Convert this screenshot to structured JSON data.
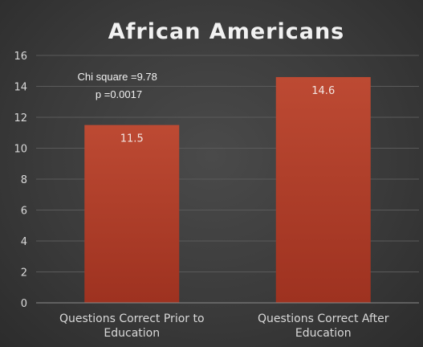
{
  "chart_data": {
    "type": "bar",
    "title": "African Americans",
    "categories": [
      [
        "Questions Correct Prior to",
        "Education"
      ],
      [
        "Questions Correct After",
        "Education"
      ]
    ],
    "values": [
      11.5,
      14.6
    ],
    "data_labels": [
      "11.5",
      "14.6"
    ],
    "ylim": [
      0,
      16
    ],
    "yticks": [
      0,
      2,
      4,
      6,
      8,
      10,
      12,
      14,
      16
    ],
    "grid": true,
    "bar_color": "#b0422c",
    "annotation": [
      "Chi square =9.78",
      "p =0.0017"
    ]
  }
}
